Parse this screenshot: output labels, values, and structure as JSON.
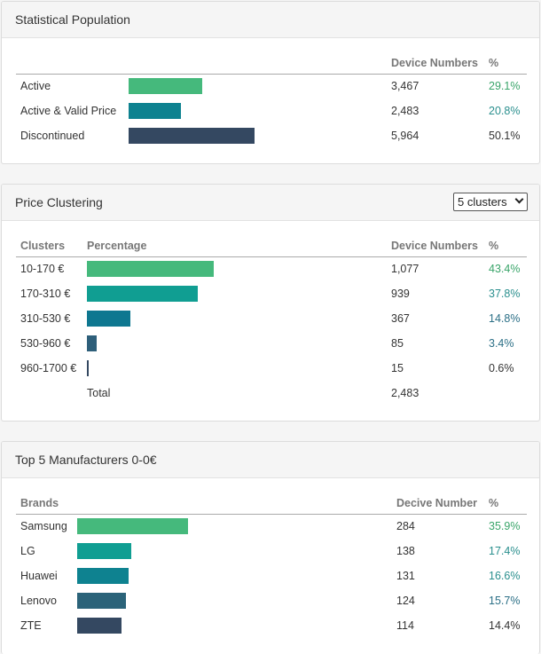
{
  "stat": {
    "title": "Statistical Population",
    "headers": {
      "devices": "Device Numbers",
      "pct": "%"
    },
    "rows": [
      {
        "label": "Active",
        "devices": "3,467",
        "pct": "29.1%",
        "share": 0.291,
        "color": "#45b97c",
        "pct_color": "#3aa56a"
      },
      {
        "label": "Active & Valid Price",
        "devices": "2,483",
        "pct": "20.8%",
        "share": 0.208,
        "color": "#0e8290",
        "pct_color": "#2a8f8e"
      },
      {
        "label": "Discontinued",
        "devices": "5,964",
        "pct": "50.1%",
        "share": 0.501,
        "color": "#344861",
        "pct_color": "#333333"
      }
    ]
  },
  "price": {
    "title": "Price Clustering",
    "select_value": "5 clusters",
    "headers": {
      "clusters": "Clusters",
      "percentage": "Percentage",
      "devices": "Device Numbers",
      "pct": "%"
    },
    "rows": [
      {
        "label": "10-170 €",
        "devices": "1,077",
        "pct": "43.4%",
        "share": 0.434,
        "color": "#45b97c",
        "pct_color": "#3aa56a"
      },
      {
        "label": "170-310 €",
        "devices": "939",
        "pct": "37.8%",
        "share": 0.378,
        "color": "#109e92",
        "pct_color": "#2a8f8e"
      },
      {
        "label": "310-530 €",
        "devices": "367",
        "pct": "14.8%",
        "share": 0.148,
        "color": "#0e7790",
        "pct_color": "#2b6f86"
      },
      {
        "label": "530-960 €",
        "devices": "85",
        "pct": "3.4%",
        "share": 0.034,
        "color": "#2e5f7a",
        "pct_color": "#2b6f86"
      },
      {
        "label": "960-1700 €",
        "devices": "15",
        "pct": "0.6%",
        "share": 0.006,
        "color": "#344861",
        "pct_color": "#333333"
      }
    ],
    "total_label": "Total",
    "total_value": "2,483"
  },
  "brands": {
    "title": "Top 5 Manufacturers 0-0€",
    "headers": {
      "brands": "Brands",
      "devices": "Decive Number",
      "pct": "%"
    },
    "rows": [
      {
        "label": "Samsung",
        "devices": "284",
        "pct": "35.9%",
        "share": 0.359,
        "color": "#45b97c",
        "pct_color": "#3aa56a"
      },
      {
        "label": "LG",
        "devices": "138",
        "pct": "17.4%",
        "share": 0.174,
        "color": "#109e92",
        "pct_color": "#2a8f8e"
      },
      {
        "label": "Huawei",
        "devices": "131",
        "pct": "16.6%",
        "share": 0.166,
        "color": "#0e8290",
        "pct_color": "#2a8f8e"
      },
      {
        "label": "Lenovo",
        "devices": "124",
        "pct": "15.7%",
        "share": 0.157,
        "color": "#2b6379",
        "pct_color": "#2b6f86"
      },
      {
        "label": "ZTE",
        "devices": "114",
        "pct": "14.4%",
        "share": 0.144,
        "color": "#344861",
        "pct_color": "#333333"
      }
    ]
  }
}
